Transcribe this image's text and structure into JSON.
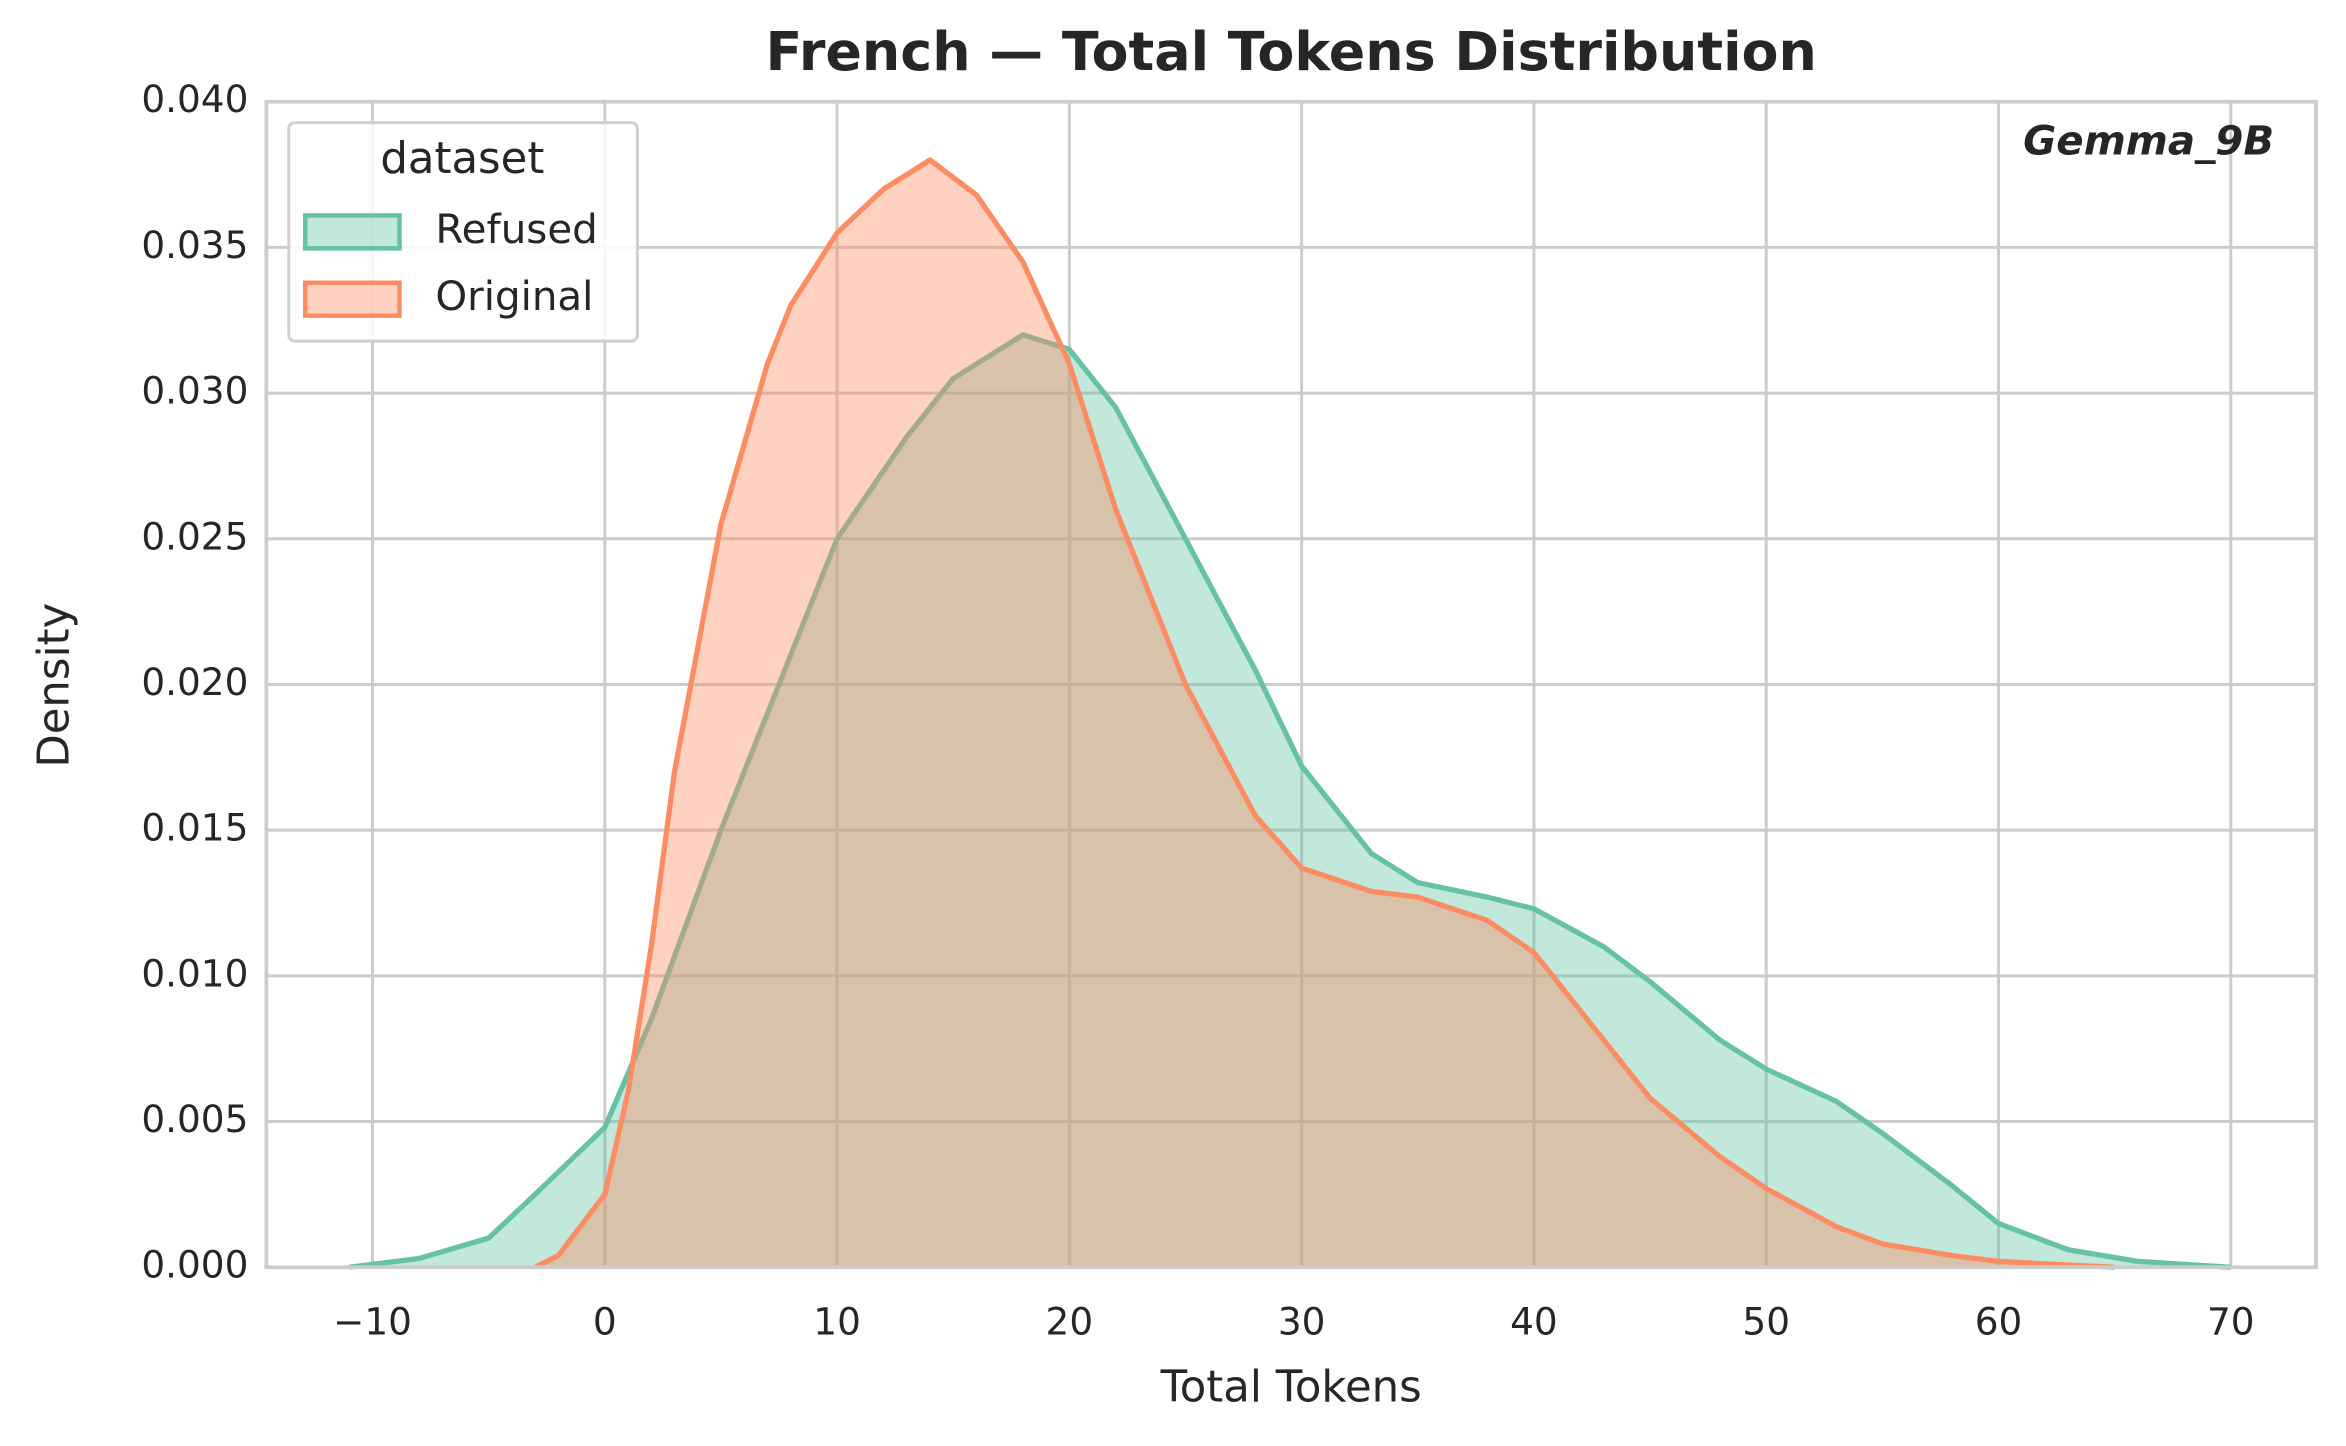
{
  "chart_data": {
    "type": "kde",
    "title": "French — Total Tokens Distribution",
    "xlabel": "Total Tokens",
    "ylabel": "Density",
    "annotation": "Gemma_9B",
    "legend_title": "dataset",
    "legend_loc": "upper left",
    "grid": true,
    "xlim": [
      -14.57,
      73.67
    ],
    "ylim": [
      0,
      0.04
    ],
    "xticks": [
      {
        "value": -10,
        "label": "−10"
      },
      0,
      10,
      20,
      30,
      40,
      50,
      60,
      70
    ],
    "yticks": [
      {
        "value": 0,
        "label": "0.000"
      },
      {
        "value": 0.005,
        "label": "0.005"
      },
      {
        "value": 0.01,
        "label": "0.010"
      },
      {
        "value": 0.015,
        "label": "0.015"
      },
      {
        "value": 0.02,
        "label": "0.020"
      },
      {
        "value": 0.025,
        "label": "0.025"
      },
      {
        "value": 0.03,
        "label": "0.030"
      },
      {
        "value": 0.035,
        "label": "0.035"
      },
      {
        "value": 0.04,
        "label": "0.040"
      }
    ],
    "series": [
      {
        "name": "Refused",
        "color": "#66c2a5",
        "x": [
          -11,
          -8,
          -5,
          -3,
          0,
          2,
          5,
          8,
          10,
          13,
          15,
          18,
          20,
          22,
          25,
          28,
          30,
          33,
          35,
          38,
          40,
          43,
          45,
          48,
          50,
          53,
          55,
          58,
          60,
          63,
          66,
          70
        ],
        "values": [
          0,
          0.0003,
          0.001,
          0.0025,
          0.0048,
          0.0085,
          0.015,
          0.021,
          0.025,
          0.0285,
          0.0305,
          0.032,
          0.0315,
          0.0295,
          0.025,
          0.0205,
          0.0172,
          0.0142,
          0.0132,
          0.0127,
          0.0123,
          0.011,
          0.0098,
          0.0078,
          0.0068,
          0.0057,
          0.0046,
          0.0028,
          0.0015,
          0.0006,
          0.0002,
          0
        ]
      },
      {
        "name": "Original",
        "color": "#fc8d62",
        "x": [
          -3,
          -2,
          0,
          1,
          2,
          3,
          5,
          7,
          8,
          10,
          12,
          14,
          16,
          18,
          20,
          22,
          25,
          28,
          30,
          33,
          35,
          38,
          40,
          42,
          45,
          48,
          50,
          53,
          55,
          58,
          60,
          65
        ],
        "values": [
          0,
          0.0004,
          0.0025,
          0.006,
          0.011,
          0.017,
          0.0255,
          0.031,
          0.033,
          0.0355,
          0.037,
          0.038,
          0.0368,
          0.0345,
          0.031,
          0.026,
          0.02,
          0.0155,
          0.0137,
          0.0129,
          0.0127,
          0.0119,
          0.0108,
          0.0088,
          0.0058,
          0.0038,
          0.0027,
          0.0014,
          0.0008,
          0.0004,
          0.0002,
          0
        ]
      }
    ]
  }
}
